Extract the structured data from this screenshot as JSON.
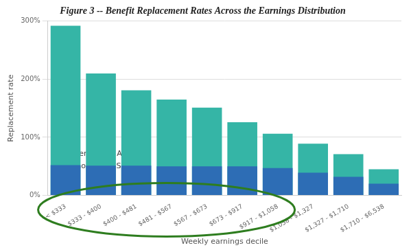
{
  "chart_data": {
    "type": "bar",
    "title": "Figure 3 -- Benefit Replacement Rates Across the Earnings Distribution",
    "x_label": "Weekly earnings decile",
    "y_label": "Replacement rate",
    "categories": [
      "< $333",
      "$333 - $400",
      "$400 - $481",
      "$481 - $567",
      "$567 - $673",
      "$673 - $917",
      "$917 - $1,058",
      "$1,058 - $1,327",
      "$1,327 - $1,710",
      "$1,710 - $6,538"
    ],
    "series": [
      {
        "name": "Under CARES Act",
        "color": "#35b5a6",
        "values": [
          292,
          210,
          181,
          165,
          151,
          126,
          106,
          89,
          71,
          45
        ]
      },
      {
        "name": "Without CARES Act",
        "color": "#2d6db5",
        "values": [
          52,
          51,
          51,
          50,
          50,
          50,
          47,
          39,
          32,
          20
        ]
      }
    ],
    "ylim": [
      0,
      300
    ],
    "yticks": [
      {
        "value": 0,
        "label": "0%"
      },
      {
        "value": 100,
        "label": "100%"
      },
      {
        "value": 200,
        "label": "200%"
      },
      {
        "value": 300,
        "label": "300%"
      }
    ],
    "grid": true,
    "legend": "upper right"
  }
}
